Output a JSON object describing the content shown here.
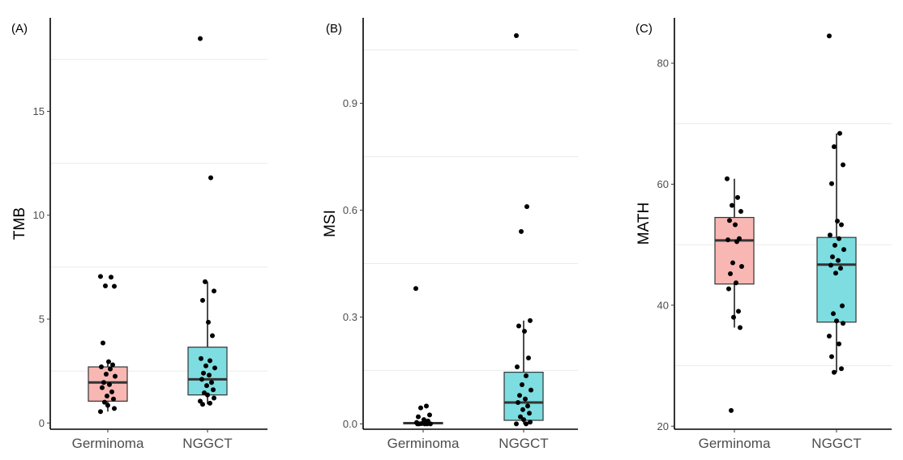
{
  "chart_data": [
    {
      "type": "box",
      "panel_label": "(A)",
      "ylabel": "TMB",
      "categories": [
        "Germinoma",
        "NGGCT"
      ],
      "yticks": [
        0,
        5,
        10,
        15
      ],
      "ylim": [
        -0.3,
        19.5
      ],
      "minor_grid": [
        2.5,
        7.5,
        12.5,
        17.5
      ],
      "colors": [
        "#F8B7B3",
        "#7DDDE0"
      ],
      "boxes": [
        {
          "q1": 1.05,
          "median": 1.95,
          "q3": 2.7,
          "whisker_low": 0.55,
          "whisker_high": 2.95
        },
        {
          "q1": 1.35,
          "median": 2.1,
          "q3": 3.65,
          "whisker_low": 0.9,
          "whisker_high": 6.8
        }
      ],
      "points": [
        [
          7.05,
          7.02,
          6.6,
          6.58,
          3.85,
          2.95,
          2.8,
          2.7,
          2.6,
          2.35,
          2.25,
          1.95,
          1.85,
          1.7,
          1.5,
          1.3,
          1.15,
          1.0,
          0.85,
          0.7,
          0.55
        ],
        [
          18.5,
          11.8,
          6.8,
          6.35,
          5.9,
          4.85,
          4.2,
          3.1,
          3.0,
          2.75,
          2.65,
          2.4,
          2.3,
          2.1,
          1.95,
          1.8,
          1.6,
          1.45,
          1.35,
          1.2,
          1.05,
          0.95,
          0.9
        ]
      ]
    },
    {
      "type": "box",
      "panel_label": "(B)",
      "ylabel": "MSI",
      "categories": [
        "Germinoma",
        "NGGCT"
      ],
      "yticks": [
        0.0,
        0.3,
        0.6,
        0.9
      ],
      "ytick_labels": [
        "0.0",
        "0.3",
        "0.6",
        "0.9"
      ],
      "ylim": [
        -0.015,
        1.14
      ],
      "minor_grid": [
        0.15,
        0.45,
        0.75,
        1.05
      ],
      "colors": [
        "#F8B7B3",
        "#7DDDE0"
      ],
      "boxes": [
        {
          "q1": 0.0,
          "median": 0.002,
          "q3": 0.004,
          "whisker_low": 0.0,
          "whisker_high": 0.004
        },
        {
          "q1": 0.01,
          "median": 0.06,
          "q3": 0.145,
          "whisker_low": 0.0,
          "whisker_high": 0.29
        }
      ],
      "points": [
        [
          0.38,
          0.05,
          0.045,
          0.025,
          0.02,
          0.012,
          0.008,
          0.004,
          0.002,
          0.001,
          0.0,
          0.0,
          0.0,
          0.0,
          0.0
        ],
        [
          1.09,
          0.61,
          0.54,
          0.29,
          0.275,
          0.26,
          0.185,
          0.16,
          0.135,
          0.11,
          0.095,
          0.08,
          0.07,
          0.06,
          0.05,
          0.04,
          0.03,
          0.02,
          0.012,
          0.005,
          0.0,
          0.0
        ]
      ]
    },
    {
      "type": "box",
      "panel_label": "(C)",
      "ylabel": "MATH",
      "categories": [
        "Germinoma",
        "NGGCT"
      ],
      "yticks": [
        20,
        40,
        60,
        80
      ],
      "ylim": [
        19.5,
        87.5
      ],
      "minor_grid": [
        30,
        50,
        70
      ],
      "colors": [
        "#F8B7B3",
        "#7DDDE0"
      ],
      "boxes": [
        {
          "q1": 43.5,
          "median": 50.7,
          "q3": 54.5,
          "whisker_low": 36.3,
          "whisker_high": 60.9
        },
        {
          "q1": 37.2,
          "median": 46.7,
          "q3": 51.2,
          "whisker_low": 28.9,
          "whisker_high": 68.4
        }
      ],
      "points": [
        [
          60.9,
          57.8,
          56.5,
          55.5,
          54.0,
          53.3,
          51.0,
          50.8,
          50.5,
          47.0,
          46.4,
          45.2,
          43.7,
          42.7,
          39.0,
          38.0,
          36.3,
          22.6
        ],
        [
          84.5,
          68.4,
          66.2,
          63.2,
          60.1,
          53.9,
          53.3,
          51.6,
          51.0,
          49.9,
          49.2,
          48.0,
          47.4,
          46.6,
          46.1,
          45.3,
          39.9,
          38.6,
          37.4,
          37.0,
          34.9,
          33.6,
          31.5,
          29.5,
          28.9
        ]
      ]
    }
  ]
}
